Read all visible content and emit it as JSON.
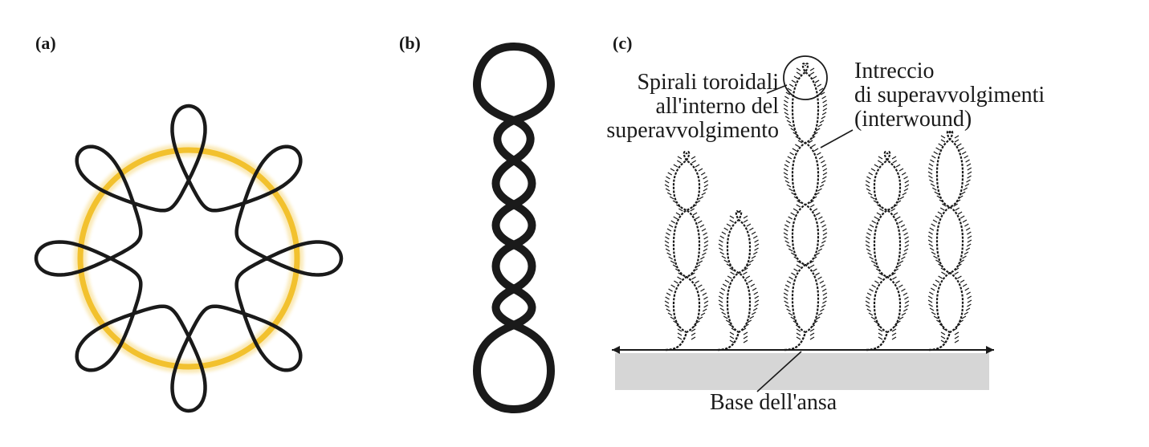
{
  "panels": {
    "a": {
      "letter": "(a)"
    },
    "b": {
      "letter": "(b)"
    },
    "c": {
      "letter": "(c)",
      "label_toroidal": [
        "Spirali toroidali",
        "all'interno del",
        "superavvolgimento"
      ],
      "label_interwound": [
        "Intreccio",
        "di superavvolgimenti",
        "(interwound)"
      ],
      "label_base": "Base dell'ansa"
    }
  },
  "colors": {
    "strand": "#1a1a1a",
    "ring": "#f2c12e",
    "base_block": "#d6d6d6"
  }
}
